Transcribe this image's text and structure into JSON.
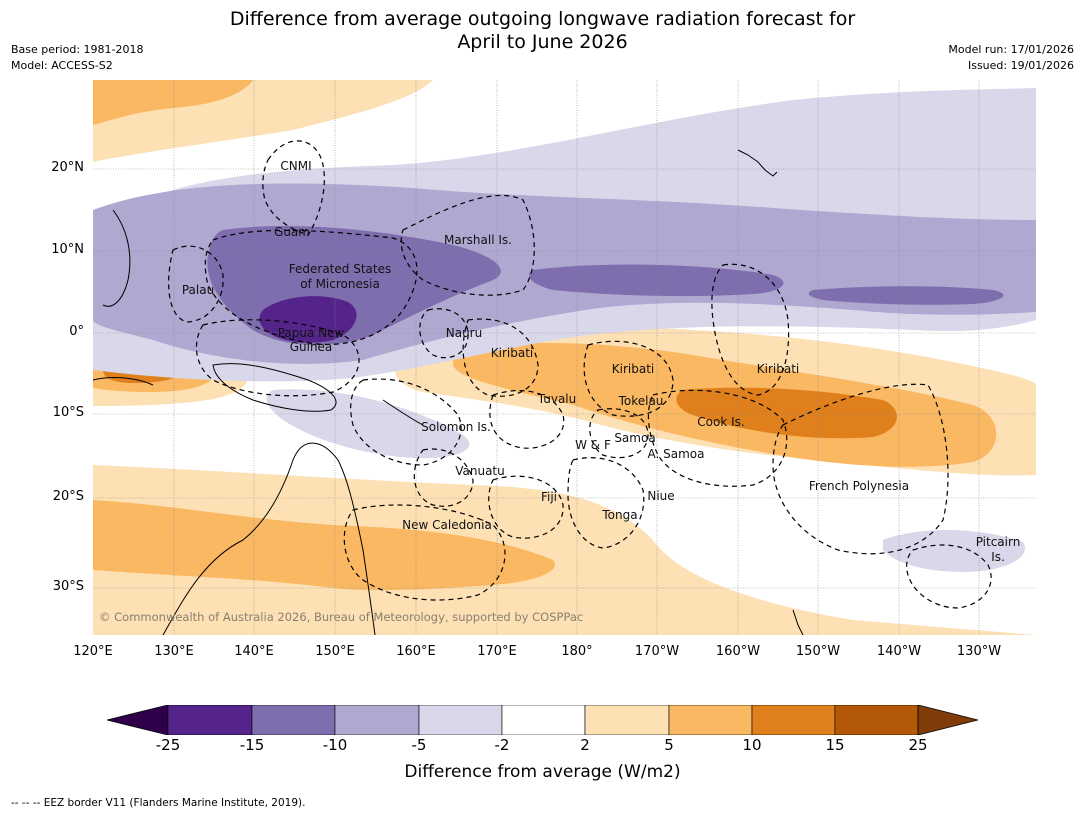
{
  "title": {
    "line1": "Difference from average outgoing longwave radiation forecast for",
    "line2": "April to June 2026"
  },
  "meta": {
    "base_period": "Base period: 1981-2018",
    "model": "Model: ACCESS-S2",
    "model_run": "Model run: 17/01/2026",
    "issued": "Issued: 19/01/2026"
  },
  "axes": {
    "lon_ticks": [
      "120°E",
      "130°E",
      "140°E",
      "150°E",
      "160°E",
      "170°E",
      "180°",
      "170°W",
      "160°W",
      "150°W",
      "140°W",
      "130°W"
    ],
    "lat_ticks": [
      "20°N",
      "10°N",
      "0°",
      "10°S",
      "20°S",
      "30°S"
    ]
  },
  "map_labels": {
    "cnmi": "CNMI",
    "guam": "Guam",
    "marshall": "Marshall Is.",
    "fsm1": "Federated States",
    "fsm2": "of Micronesia",
    "palau": "Palau",
    "png1": "Papua New",
    "png2": "Guinea",
    "nauru": "Nauru",
    "kiribati_w": "Kiribati",
    "kiribati_c": "Kiribati",
    "kiribati_e": "Kiribati",
    "tuvalu": "Tuvalu",
    "tokelau": "Tokelau",
    "cook": "Cook Is.",
    "solomon": "Solomon Is.",
    "samoa": "Samoa",
    "wf": "W & F",
    "asamoa": "A. Samoa",
    "vanuatu": "Vanuatu",
    "fiji": "Fiji",
    "niue": "Niue",
    "tonga": "Tonga",
    "french_poly": "French Polynesia",
    "new_caledonia": "New Caledonia",
    "pitcairn1": "Pitcairn",
    "pitcairn2": "Is."
  },
  "copyright": "© Commonwealth of Australia 2026, Bureau of Meteorology, supported by COSPPac",
  "colorbar": {
    "ticks": [
      "-25",
      "-15",
      "-10",
      "-5",
      "-2",
      "2",
      "5",
      "10",
      "15",
      "25"
    ],
    "label": "Difference from average (W/m2)",
    "colors": {
      "below_min": "#2d0049",
      "c1": "#54248a",
      "c2": "#7f6eae",
      "c3": "#afa8d1",
      "c4": "#d9d8ea",
      "c5": "#ffffff",
      "c6": "#fde0b4",
      "c7": "#fbb862",
      "c8": "#e0801d",
      "c9": "#b35806",
      "above_max": "#7f3b08"
    }
  },
  "footer": "-- -- -- EEZ border V11 (Flanders Marine Institute, 2019)."
}
